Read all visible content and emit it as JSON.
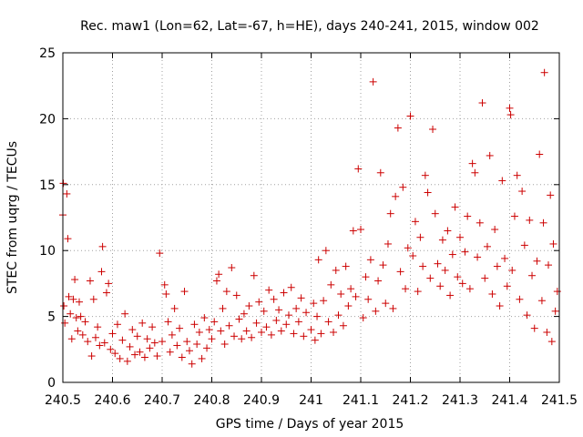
{
  "chart_data": {
    "type": "scatter",
    "title": "Rec. maw1 (Lon=62, Lat=-67, h=HE), days 240-241, 2015, window 002",
    "xlabel": "GPS time / Days of year 2015",
    "ylabel": "STEC from uqrg / TECUs",
    "xlim": [
      240.5,
      241.5
    ],
    "ylim": [
      0,
      25
    ],
    "x_ticks": [
      "240.5",
      "240.6",
      "240.7",
      "240.8",
      "240.9",
      "241",
      "241.1",
      "241.2",
      "241.3",
      "241.4",
      "241.5"
    ],
    "y_ticks": [
      "0",
      "5",
      "10",
      "15",
      "20",
      "25"
    ],
    "grid": true,
    "legend": "none",
    "marker": "plus",
    "color": "#cc0000",
    "series": [
      {
        "values": [
          [
            240.5,
            12.7
          ],
          [
            240.501,
            15.1
          ],
          [
            240.502,
            5.8
          ],
          [
            240.504,
            4.5
          ],
          [
            240.508,
            14.3
          ],
          [
            240.51,
            10.9
          ],
          [
            240.512,
            6.5
          ],
          [
            240.515,
            5.2
          ],
          [
            240.518,
            3.3
          ],
          [
            240.521,
            6.3
          ],
          [
            240.524,
            7.8
          ],
          [
            240.527,
            4.9
          ],
          [
            240.53,
            3.9
          ],
          [
            240.533,
            6.1
          ],
          [
            240.536,
            5.0
          ],
          [
            240.54,
            3.6
          ],
          [
            240.545,
            4.6
          ],
          [
            240.55,
            3.1
          ],
          [
            240.555,
            7.7
          ],
          [
            240.558,
            2.0
          ],
          [
            240.562,
            6.3
          ],
          [
            240.566,
            3.4
          ],
          [
            240.57,
            4.2
          ],
          [
            240.574,
            2.8
          ],
          [
            240.578,
            8.4
          ],
          [
            240.58,
            10.3
          ],
          [
            240.584,
            3.0
          ],
          [
            240.588,
            6.8
          ],
          [
            240.592,
            7.5
          ],
          [
            240.596,
            2.5
          ],
          [
            240.6,
            3.7
          ],
          [
            240.605,
            2.2
          ],
          [
            240.61,
            4.4
          ],
          [
            240.615,
            1.8
          ],
          [
            240.62,
            3.2
          ],
          [
            240.625,
            5.2
          ],
          [
            240.63,
            1.6
          ],
          [
            240.635,
            2.7
          ],
          [
            240.64,
            4.0
          ],
          [
            240.645,
            2.1
          ],
          [
            240.65,
            3.5
          ],
          [
            240.655,
            2.3
          ],
          [
            240.66,
            4.5
          ],
          [
            240.665,
            1.9
          ],
          [
            240.67,
            3.3
          ],
          [
            240.675,
            2.6
          ],
          [
            240.68,
            4.2
          ],
          [
            240.685,
            3.0
          ],
          [
            240.69,
            2.0
          ],
          [
            240.695,
            9.8
          ],
          [
            240.7,
            3.1
          ],
          [
            240.705,
            7.4
          ],
          [
            240.708,
            6.7
          ],
          [
            240.712,
            4.6
          ],
          [
            240.716,
            2.3
          ],
          [
            240.72,
            3.6
          ],
          [
            240.725,
            5.6
          ],
          [
            240.73,
            2.8
          ],
          [
            240.735,
            4.1
          ],
          [
            240.74,
            1.9
          ],
          [
            240.745,
            6.9
          ],
          [
            240.75,
            3.1
          ],
          [
            240.755,
            2.4
          ],
          [
            240.76,
            1.4
          ],
          [
            240.765,
            4.4
          ],
          [
            240.77,
            2.9
          ],
          [
            240.775,
            3.8
          ],
          [
            240.78,
            1.8
          ],
          [
            240.785,
            4.9
          ],
          [
            240.79,
            2.6
          ],
          [
            240.795,
            4.0
          ],
          [
            240.8,
            3.3
          ],
          [
            240.805,
            4.6
          ],
          [
            240.81,
            7.7
          ],
          [
            240.814,
            8.2
          ],
          [
            240.818,
            3.9
          ],
          [
            240.822,
            5.6
          ],
          [
            240.826,
            2.9
          ],
          [
            240.83,
            6.9
          ],
          [
            240.835,
            4.3
          ],
          [
            240.84,
            8.7
          ],
          [
            240.845,
            3.5
          ],
          [
            240.85,
            6.6
          ],
          [
            240.855,
            4.8
          ],
          [
            240.86,
            3.3
          ],
          [
            240.865,
            5.2
          ],
          [
            240.87,
            3.9
          ],
          [
            240.875,
            5.8
          ],
          [
            240.88,
            3.4
          ],
          [
            240.885,
            8.1
          ],
          [
            240.89,
            4.5
          ],
          [
            240.895,
            6.1
          ],
          [
            240.9,
            3.8
          ],
          [
            240.905,
            5.4
          ],
          [
            240.91,
            4.2
          ],
          [
            240.915,
            7.0
          ],
          [
            240.92,
            3.6
          ],
          [
            240.925,
            6.3
          ],
          [
            240.93,
            4.7
          ],
          [
            240.935,
            5.5
          ],
          [
            240.94,
            3.9
          ],
          [
            240.945,
            6.8
          ],
          [
            240.95,
            4.4
          ],
          [
            240.955,
            5.1
          ],
          [
            240.96,
            7.2
          ],
          [
            240.965,
            3.7
          ],
          [
            240.97,
            5.6
          ],
          [
            240.975,
            4.6
          ],
          [
            240.98,
            6.4
          ],
          [
            240.985,
            3.5
          ],
          [
            240.99,
            5.3
          ],
          [
            241.0,
            4.0
          ],
          [
            241.005,
            6.0
          ],
          [
            241.008,
            3.2
          ],
          [
            241.012,
            5.0
          ],
          [
            241.015,
            9.3
          ],
          [
            241.02,
            3.7
          ],
          [
            241.025,
            6.2
          ],
          [
            241.03,
            10.0
          ],
          [
            241.035,
            4.6
          ],
          [
            241.04,
            7.4
          ],
          [
            241.045,
            3.8
          ],
          [
            241.05,
            8.5
          ],
          [
            241.055,
            5.1
          ],
          [
            241.06,
            6.7
          ],
          [
            241.065,
            4.3
          ],
          [
            241.07,
            8.8
          ],
          [
            241.075,
            5.8
          ],
          [
            241.08,
            7.1
          ],
          [
            241.085,
            11.5
          ],
          [
            241.09,
            6.5
          ],
          [
            241.095,
            16.2
          ],
          [
            241.1,
            11.6
          ],
          [
            241.105,
            4.9
          ],
          [
            241.11,
            8.0
          ],
          [
            241.115,
            6.3
          ],
          [
            241.12,
            9.3
          ],
          [
            241.125,
            22.8
          ],
          [
            241.13,
            5.4
          ],
          [
            241.135,
            7.7
          ],
          [
            241.14,
            15.9
          ],
          [
            241.145,
            8.9
          ],
          [
            241.15,
            6.0
          ],
          [
            241.155,
            10.5
          ],
          [
            241.16,
            12.8
          ],
          [
            241.165,
            5.6
          ],
          [
            241.17,
            14.1
          ],
          [
            241.175,
            19.3
          ],
          [
            241.18,
            8.4
          ],
          [
            241.185,
            14.8
          ],
          [
            241.19,
            7.1
          ],
          [
            241.195,
            10.2
          ],
          [
            241.2,
            20.2
          ],
          [
            241.205,
            9.6
          ],
          [
            241.21,
            12.2
          ],
          [
            241.215,
            6.9
          ],
          [
            241.22,
            11.0
          ],
          [
            241.225,
            8.8
          ],
          [
            241.23,
            15.7
          ],
          [
            241.235,
            14.4
          ],
          [
            241.24,
            7.9
          ],
          [
            241.245,
            19.2
          ],
          [
            241.25,
            12.8
          ],
          [
            241.255,
            9.0
          ],
          [
            241.26,
            7.3
          ],
          [
            241.265,
            10.8
          ],
          [
            241.27,
            8.5
          ],
          [
            241.275,
            11.5
          ],
          [
            241.28,
            6.6
          ],
          [
            241.285,
            9.7
          ],
          [
            241.29,
            13.3
          ],
          [
            241.295,
            8.0
          ],
          [
            241.3,
            11.0
          ],
          [
            241.305,
            7.5
          ],
          [
            241.31,
            9.9
          ],
          [
            241.315,
            12.6
          ],
          [
            241.32,
            7.1
          ],
          [
            241.325,
            16.6
          ],
          [
            241.33,
            15.9
          ],
          [
            241.335,
            9.5
          ],
          [
            241.34,
            12.1
          ],
          [
            241.345,
            21.2
          ],
          [
            241.35,
            7.9
          ],
          [
            241.355,
            10.3
          ],
          [
            241.36,
            17.2
          ],
          [
            241.365,
            6.7
          ],
          [
            241.37,
            11.6
          ],
          [
            241.375,
            8.8
          ],
          [
            241.38,
            5.8
          ],
          [
            241.385,
            15.3
          ],
          [
            241.39,
            9.4
          ],
          [
            241.395,
            7.3
          ],
          [
            241.4,
            20.8
          ],
          [
            241.402,
            20.3
          ],
          [
            241.405,
            8.5
          ],
          [
            241.41,
            12.6
          ],
          [
            241.415,
            15.7
          ],
          [
            241.42,
            6.3
          ],
          [
            241.425,
            14.5
          ],
          [
            241.43,
            10.4
          ],
          [
            241.435,
            5.1
          ],
          [
            241.44,
            12.3
          ],
          [
            241.445,
            8.1
          ],
          [
            241.45,
            4.1
          ],
          [
            241.455,
            9.2
          ],
          [
            241.46,
            17.3
          ],
          [
            241.465,
            6.2
          ],
          [
            241.468,
            12.1
          ],
          [
            241.47,
            23.5
          ],
          [
            241.475,
            3.8
          ],
          [
            241.478,
            8.9
          ],
          [
            241.482,
            14.2
          ],
          [
            241.485,
            3.1
          ],
          [
            241.488,
            10.5
          ],
          [
            241.492,
            5.4
          ],
          [
            241.496,
            6.9
          ]
        ]
      }
    ]
  }
}
